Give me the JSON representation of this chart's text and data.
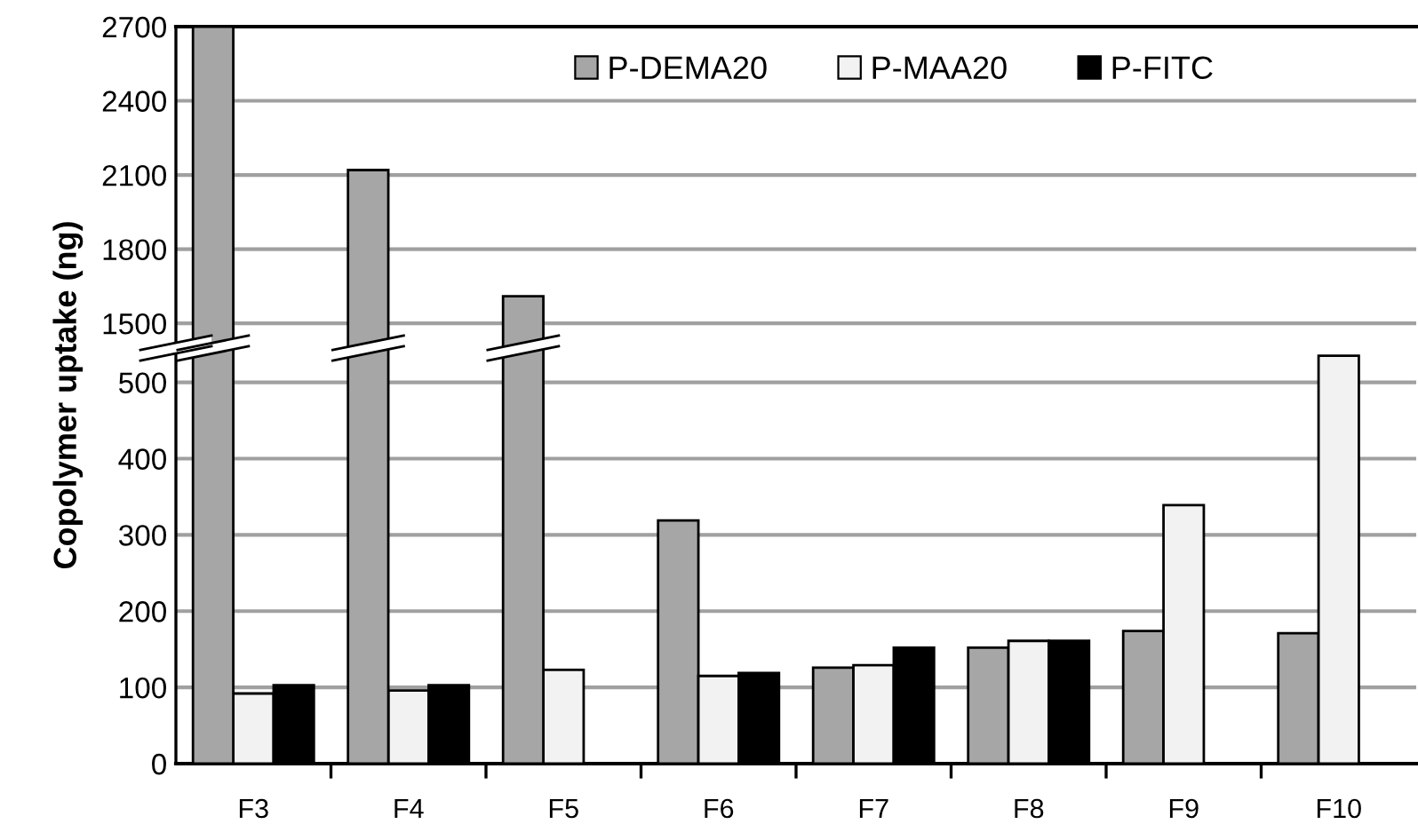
{
  "chart_data": [
    {
      "type": "bar",
      "series": [
        {
          "name": "P-DEMA20",
          "color": "#a6a6a6",
          "values": [
            2700,
            2120,
            1610,
            null,
            null,
            null,
            null,
            null
          ]
        },
        {
          "name": "P-MAA20",
          "color": "#f2f2f2",
          "values": [
            null,
            null,
            null,
            null,
            null,
            null,
            null,
            null
          ]
        },
        {
          "name": "P-FITC",
          "color": "#000000",
          "values": [
            null,
            null,
            null,
            null,
            null,
            null,
            null,
            null
          ]
        }
      ],
      "ylim": [
        1400,
        2700
      ],
      "yticks": [
        1500,
        1800,
        2100,
        2400,
        2700
      ],
      "grid": "y",
      "legend": "top right",
      "tick_labels": "y"
    },
    {
      "type": "bar",
      "categories": [
        "F3",
        "F4",
        "F5",
        "F6",
        "F7",
        "F8",
        "F9",
        "F10"
      ],
      "ylabel": "Copolymer uptake (ng)",
      "series": [
        {
          "color": "#a6a6a6",
          "values": [
            null,
            null,
            null,
            319,
            126,
            152,
            174,
            171
          ]
        },
        {
          "color": "#f2f2f2",
          "values": [
            92,
            96,
            123,
            115,
            129,
            161,
            339,
            535
          ]
        },
        {
          "color": "#000000",
          "values": [
            103,
            103,
            null,
            119,
            152,
            161,
            null,
            null
          ]
        }
      ],
      "ylim": [
        0,
        545
      ],
      "yticks": [
        0,
        100,
        200,
        300,
        400,
        500
      ],
      "grid": "y",
      "legend": false
    }
  ]
}
